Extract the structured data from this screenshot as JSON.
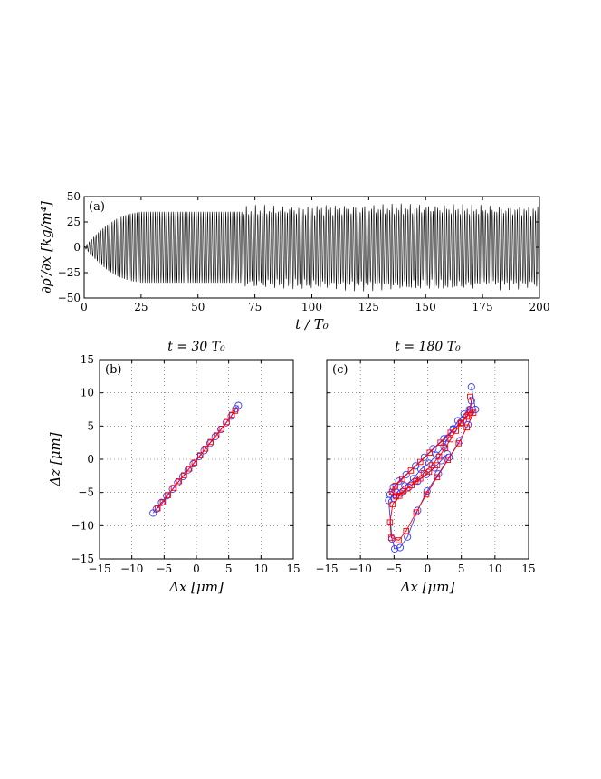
{
  "chart_data": [
    {
      "panel": "(a)",
      "type": "line",
      "title": "",
      "xlabel": "t / T₀",
      "ylabel": "∂ρ′/∂x  [kg/m⁴]",
      "xlim": [
        0,
        200
      ],
      "ylim": [
        -50,
        50
      ],
      "xticks": [
        "0",
        "25",
        "50",
        "75",
        "100",
        "125",
        "150",
        "175",
        "200"
      ],
      "yticks": [
        "50",
        "25",
        "0",
        "−25",
        "−50"
      ],
      "grid": false,
      "series_color": "#000000",
      "oscillation": {
        "cycles": 200,
        "envelope": [
          [
            0,
            0
          ],
          [
            5,
            12
          ],
          [
            10,
            22
          ],
          [
            15,
            29
          ],
          [
            20,
            33
          ],
          [
            25,
            35
          ],
          [
            70,
            35
          ],
          [
            75,
            36
          ],
          [
            100,
            37
          ],
          [
            150,
            38
          ],
          [
            200,
            36
          ]
        ]
      }
    },
    {
      "panel": "(b)",
      "type": "scatter",
      "title": "t = 30 T₀",
      "xlabel": "Δx [μm]",
      "ylabel": "Δz [μm]",
      "xlim": [
        -15,
        15
      ],
      "ylim": [
        -15,
        15
      ],
      "xticks": [
        "−15",
        "−10",
        "−5",
        "0",
        "5",
        "10",
        "15"
      ],
      "yticks": [
        "15",
        "10",
        "5",
        "0",
        "−5",
        "−10",
        "−15"
      ],
      "grid": true,
      "series": [
        {
          "marker": "circle",
          "color": "#3a3aff",
          "x": [
            -6.7,
            -6.2,
            -5.4,
            -4.6,
            -3.7,
            -2.9,
            -2.1,
            -1.3,
            -0.5,
            0.4,
            1.2,
            2.1,
            2.9,
            3.8,
            4.6,
            5.4,
            6.1,
            6.5
          ],
          "y": [
            -8.1,
            -7.5,
            -6.5,
            -5.5,
            -4.5,
            -3.5,
            -2.6,
            -1.6,
            -0.7,
            0.4,
            1.3,
            2.4,
            3.4,
            4.5,
            5.5,
            6.5,
            7.6,
            8.1
          ]
        },
        {
          "marker": "square",
          "color": "#ff0000",
          "x": [
            -6.0,
            -5.2,
            -4.4,
            -3.5,
            -2.7,
            -1.9,
            -1.1,
            -0.3,
            0.6,
            1.4,
            2.2,
            3.1,
            3.9,
            4.7,
            5.5,
            6.0
          ],
          "y": [
            -7.4,
            -6.5,
            -5.4,
            -4.3,
            -3.3,
            -2.4,
            -1.4,
            -0.5,
            0.6,
            1.6,
            2.6,
            3.6,
            4.6,
            5.6,
            6.7,
            7.3
          ]
        }
      ]
    },
    {
      "panel": "(c)",
      "type": "scatter",
      "title": "t = 180 T₀",
      "xlabel": "Δx [μm]",
      "ylabel": "",
      "xlim": [
        -15,
        15
      ],
      "ylim": [
        -15,
        15
      ],
      "xticks": [
        "−15",
        "−10",
        "−5",
        "0",
        "5",
        "10",
        "15"
      ],
      "yticks": [],
      "grid": true,
      "series": [
        {
          "marker": "circle",
          "color": "#3a3aff",
          "x": [
            6.5,
            7.1,
            6.0,
            4.8,
            3.2,
            1.6,
            -0.1,
            -1.5,
            -3.0,
            -4.1,
            -4.9,
            -5.3,
            -5.8,
            -4.6,
            -3.4,
            -2.1,
            -1.0,
            0.2,
            1.3,
            2.4,
            3.0,
            3.8,
            4.5,
            5.4,
            6.2,
            6.5,
            6.3,
            5.3,
            3.8,
            2.4,
            0.8,
            -0.5,
            -1.8,
            -3.2,
            -4.3,
            -5.1,
            -5.6,
            -5.0,
            -4.0,
            -2.8,
            -1.5,
            -0.2,
            1.0,
            2.0,
            2.9
          ],
          "y": [
            10.9,
            7.5,
            5.2,
            2.8,
            0.3,
            -2.2,
            -4.8,
            -7.7,
            -11.7,
            -13.3,
            -13.5,
            -12.0,
            -6.2,
            -5.0,
            -4.0,
            -2.9,
            -1.5,
            -0.6,
            0.6,
            1.9,
            3.2,
            4.6,
            5.8,
            6.8,
            7.5,
            8.8,
            7.1,
            5.9,
            4.5,
            3.1,
            1.6,
            0.3,
            -1.0,
            -2.3,
            -3.3,
            -4.2,
            -5.3,
            -5.9,
            -5.1,
            -4.2,
            -3.3,
            -2.3,
            -1.3,
            -0.2,
            0.8
          ]
        },
        {
          "marker": "square",
          "color": "#ff0000",
          "x": [
            6.3,
            6.8,
            5.8,
            4.6,
            3.0,
            1.4,
            -0.2,
            -1.7,
            -3.2,
            -4.3,
            -5.4,
            -5.6,
            -5.2,
            -4.2,
            -3.0,
            -1.8,
            -0.6,
            0.6,
            1.7,
            2.6,
            3.4,
            4.2,
            5.0,
            5.8,
            6.3,
            6.0,
            4.9,
            3.4,
            1.9,
            0.3,
            -1.1,
            -2.5,
            -3.8,
            -4.8,
            -5.3,
            -4.7,
            -3.6,
            -2.4,
            -1.1,
            0.2,
            1.4
          ],
          "y": [
            9.4,
            7.0,
            4.8,
            2.4,
            -0.1,
            -2.7,
            -5.3,
            -8.0,
            -10.8,
            -12.2,
            -11.8,
            -9.5,
            -6.8,
            -5.5,
            -4.4,
            -3.3,
            -2.1,
            -0.9,
            0.4,
            1.7,
            3.0,
            4.3,
            5.5,
            6.4,
            7.4,
            6.6,
            5.4,
            4.0,
            2.5,
            1.0,
            -0.4,
            -1.7,
            -3.0,
            -4.0,
            -4.9,
            -5.6,
            -4.8,
            -3.9,
            -2.9,
            -1.9,
            -0.9
          ]
        }
      ]
    }
  ]
}
